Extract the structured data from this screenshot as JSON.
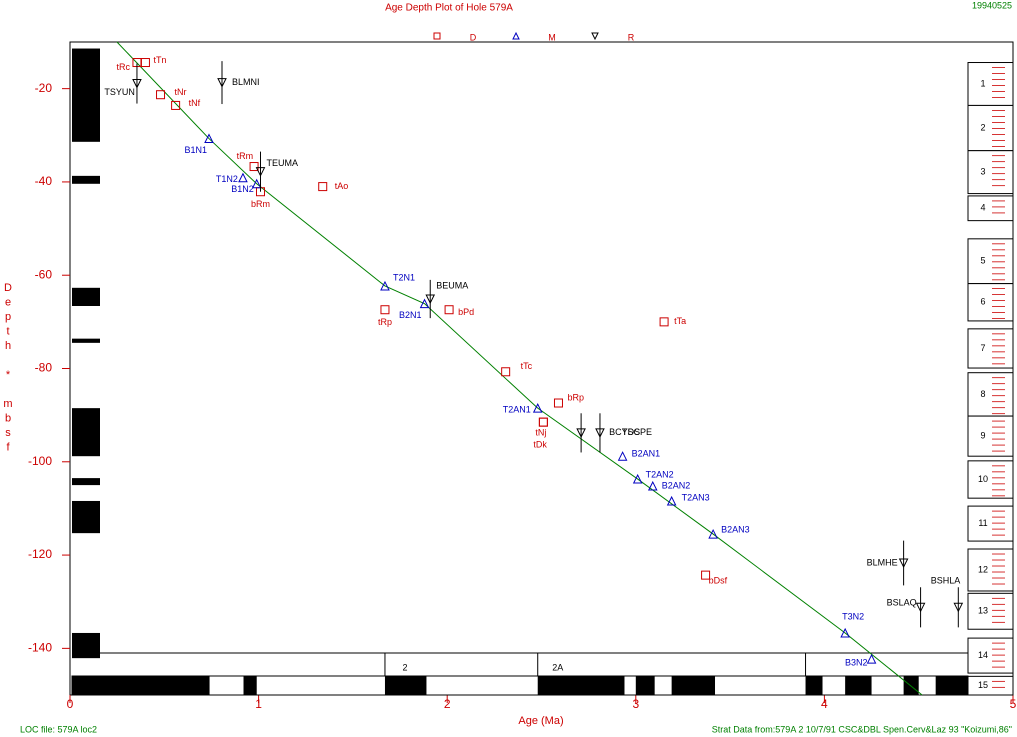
{
  "chart_data": {
    "type": "scatter",
    "title": "Age Depth Plot of Hole 579A",
    "date": "19940525",
    "xlabel": "Age (Ma)",
    "ylabel": "Depth * mbsf",
    "footer_left": "LOC file: 579A loc2",
    "footer_right": "Strat Data from:579A 2 10/7/91 CSC&DBL Spen.Cerv&Laz 93 \"Koizumi,86\"",
    "xlim": [
      0,
      5
    ],
    "ylim": [
      -150,
      -10
    ],
    "xticks": [
      0,
      1,
      2,
      3,
      4,
      5
    ],
    "yticks": [
      -140,
      -120,
      -100,
      -80,
      -60,
      -40,
      -20
    ],
    "legend": "top",
    "series": [
      {
        "name": "D",
        "marker": "square",
        "color": "#cc0000",
        "x": [
          0.355,
          0.4,
          0.48,
          0.56,
          0.976,
          1.01,
          1.34,
          1.67,
          2.01,
          3.15,
          2.31,
          2.59,
          2.51,
          2.51,
          3.37
        ],
        "values": [
          -14.4,
          -14.4,
          -21.3,
          -23.6,
          -36.7,
          -42.1,
          -41.0,
          -67.4,
          -67.4,
          -70.0,
          -80.7,
          -87.4,
          -91.5,
          -91.5,
          -124.3
        ],
        "labels": [
          "tRc",
          "tTn",
          "tNr",
          "tNf",
          "tRm",
          "bRm",
          "tAo",
          "tRp",
          "bPd",
          "tTa",
          "tTc",
          "bRp",
          "tNj",
          "tDk",
          "bDsf"
        ]
      },
      {
        "name": "M",
        "marker": "triangle",
        "color": "#0000c0",
        "x": [
          0.737,
          0.917,
          0.99,
          1.67,
          1.88,
          2.48,
          2.93,
          3.01,
          3.09,
          3.19,
          3.41,
          4.11,
          4.25
        ],
        "values": [
          -30.7,
          -39.1,
          -40.4,
          -62.3,
          -66.1,
          -88.5,
          -98.8,
          -103.7,
          -105.2,
          -108.4,
          -115.5,
          -136.7,
          -142.3
        ],
        "labels": [
          "B1N1",
          "T1N2",
          "B1N2",
          "T2N1",
          "B2N1",
          "T2AN1",
          "B2AN1",
          "T2AN2",
          "B2AN2",
          "T2AN3",
          "B2AN3",
          "T3N2",
          "B3N2"
        ]
      },
      {
        "name": "R",
        "marker": "down-triangle",
        "color": "#000000",
        "x": [
          0.355,
          0.806,
          1.01,
          1.91,
          2.71,
          2.81,
          4.42,
          4.51,
          4.71
        ],
        "values": [
          -18.9,
          -18.7,
          -37.8,
          -65.1,
          -93.8,
          -93.8,
          -121.7,
          -131.2,
          -131.2
        ],
        "errors": [
          4.3,
          4.6,
          4.3,
          4.1,
          4.2,
          4.2,
          4.8,
          4.3,
          4.3
        ],
        "labels": [
          "TSYUN",
          "BLMNI",
          "TEUMA",
          "BEUMA",
          "BCYDS",
          "TSCPE",
          "BLMHE",
          "BSLAQ",
          "BSHLA"
        ]
      }
    ],
    "fit": {
      "color": "#008000",
      "x": [
        0.249,
        0.737,
        0.99,
        1.67,
        1.88,
        2.48,
        3.01,
        3.41,
        4.11,
        4.518
      ],
      "values": [
        -10,
        -30.7,
        -40.4,
        -62.3,
        -66.1,
        -88.5,
        -103.7,
        -115.5,
        -136.7,
        -150
      ]
    },
    "polarity_depth": [
      [
        -11.4,
        -31.4
      ],
      [
        -38.7,
        -40.4
      ],
      [
        -62.7,
        -66.6
      ],
      [
        -73.6,
        -74.5
      ],
      [
        -88.5,
        -98.8
      ],
      [
        -103.5,
        -105.0
      ],
      [
        -108.4,
        -115.3
      ],
      [
        -136.7,
        -142.1
      ]
    ],
    "polarity_age": [
      [
        0.01,
        0.74
      ],
      [
        0.92,
        0.99
      ],
      [
        1.67,
        1.89
      ],
      [
        2.48,
        2.94
      ],
      [
        3.0,
        3.1
      ],
      [
        3.19,
        3.42
      ],
      [
        3.9,
        3.99
      ],
      [
        4.11,
        4.25
      ],
      [
        4.42,
        4.5
      ],
      [
        4.59,
        4.78
      ]
    ],
    "chron_depth": -141,
    "chrons": [
      {
        "label": "2",
        "start": 1.67,
        "end": 2.48
      },
      {
        "label": "2A",
        "start": 2.48,
        "end": 3.9
      },
      {
        "label": null,
        "start": 3.9,
        "end": 5
      }
    ],
    "zones": [
      {
        "label": "1",
        "top": -14.4,
        "bottom": -23.6
      },
      {
        "label": "2",
        "top": -23.6,
        "bottom": -33.3
      },
      {
        "label": "3",
        "top": -33.3,
        "bottom": -42.5
      },
      {
        "label": "4",
        "top": -43.0,
        "bottom": -48.3
      },
      {
        "label": "5",
        "top": -52.2,
        "bottom": -61.8
      },
      {
        "label": "6",
        "top": -61.8,
        "bottom": -69.8
      },
      {
        "label": "7",
        "top": -71.5,
        "bottom": -79.9
      },
      {
        "label": "8",
        "top": -80.9,
        "bottom": -90.2
      },
      {
        "label": "9",
        "top": -90.2,
        "bottom": -98.8
      },
      {
        "label": "10",
        "top": -99.8,
        "bottom": -107.8
      },
      {
        "label": "11",
        "top": -109.5,
        "bottom": -117.0
      },
      {
        "label": "12",
        "top": -118.7,
        "bottom": -127.7
      },
      {
        "label": "13",
        "top": -128.2,
        "bottom": -135.9
      },
      {
        "label": "14",
        "top": -137.8,
        "bottom": -145.3
      },
      {
        "label": "15",
        "top": -146.0,
        "bottom": -150
      }
    ]
  }
}
